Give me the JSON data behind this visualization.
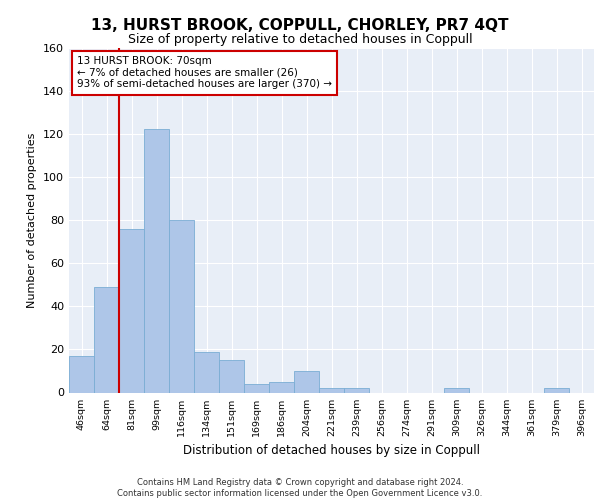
{
  "title": "13, HURST BROOK, COPPULL, CHORLEY, PR7 4QT",
  "subtitle": "Size of property relative to detached houses in Coppull",
  "xlabel": "Distribution of detached houses by size in Coppull",
  "ylabel": "Number of detached properties",
  "categories": [
    "46sqm",
    "64sqm",
    "81sqm",
    "99sqm",
    "116sqm",
    "134sqm",
    "151sqm",
    "169sqm",
    "186sqm",
    "204sqm",
    "221sqm",
    "239sqm",
    "256sqm",
    "274sqm",
    "291sqm",
    "309sqm",
    "326sqm",
    "344sqm",
    "361sqm",
    "379sqm",
    "396sqm"
  ],
  "values": [
    17,
    49,
    76,
    122,
    80,
    19,
    15,
    4,
    5,
    10,
    2,
    2,
    0,
    0,
    0,
    2,
    0,
    0,
    0,
    2,
    0
  ],
  "bar_color": "#aec6e8",
  "bar_edgecolor": "#7aadd4",
  "marker_label": "13 HURST BROOK: 70sqm",
  "annotation_line1": "← 7% of detached houses are smaller (26)",
  "annotation_line2": "93% of semi-detached houses are larger (370) →",
  "annotation_box_color": "#ffffff",
  "annotation_box_edgecolor": "#cc0000",
  "vline_color": "#cc0000",
  "vline_x": 1.5,
  "ylim": [
    0,
    160
  ],
  "yticks": [
    0,
    20,
    40,
    60,
    80,
    100,
    120,
    140,
    160
  ],
  "bg_color": "#e8eef7",
  "title_fontsize": 11,
  "subtitle_fontsize": 9,
  "footer_line1": "Contains HM Land Registry data © Crown copyright and database right 2024.",
  "footer_line2": "Contains public sector information licensed under the Open Government Licence v3.0."
}
